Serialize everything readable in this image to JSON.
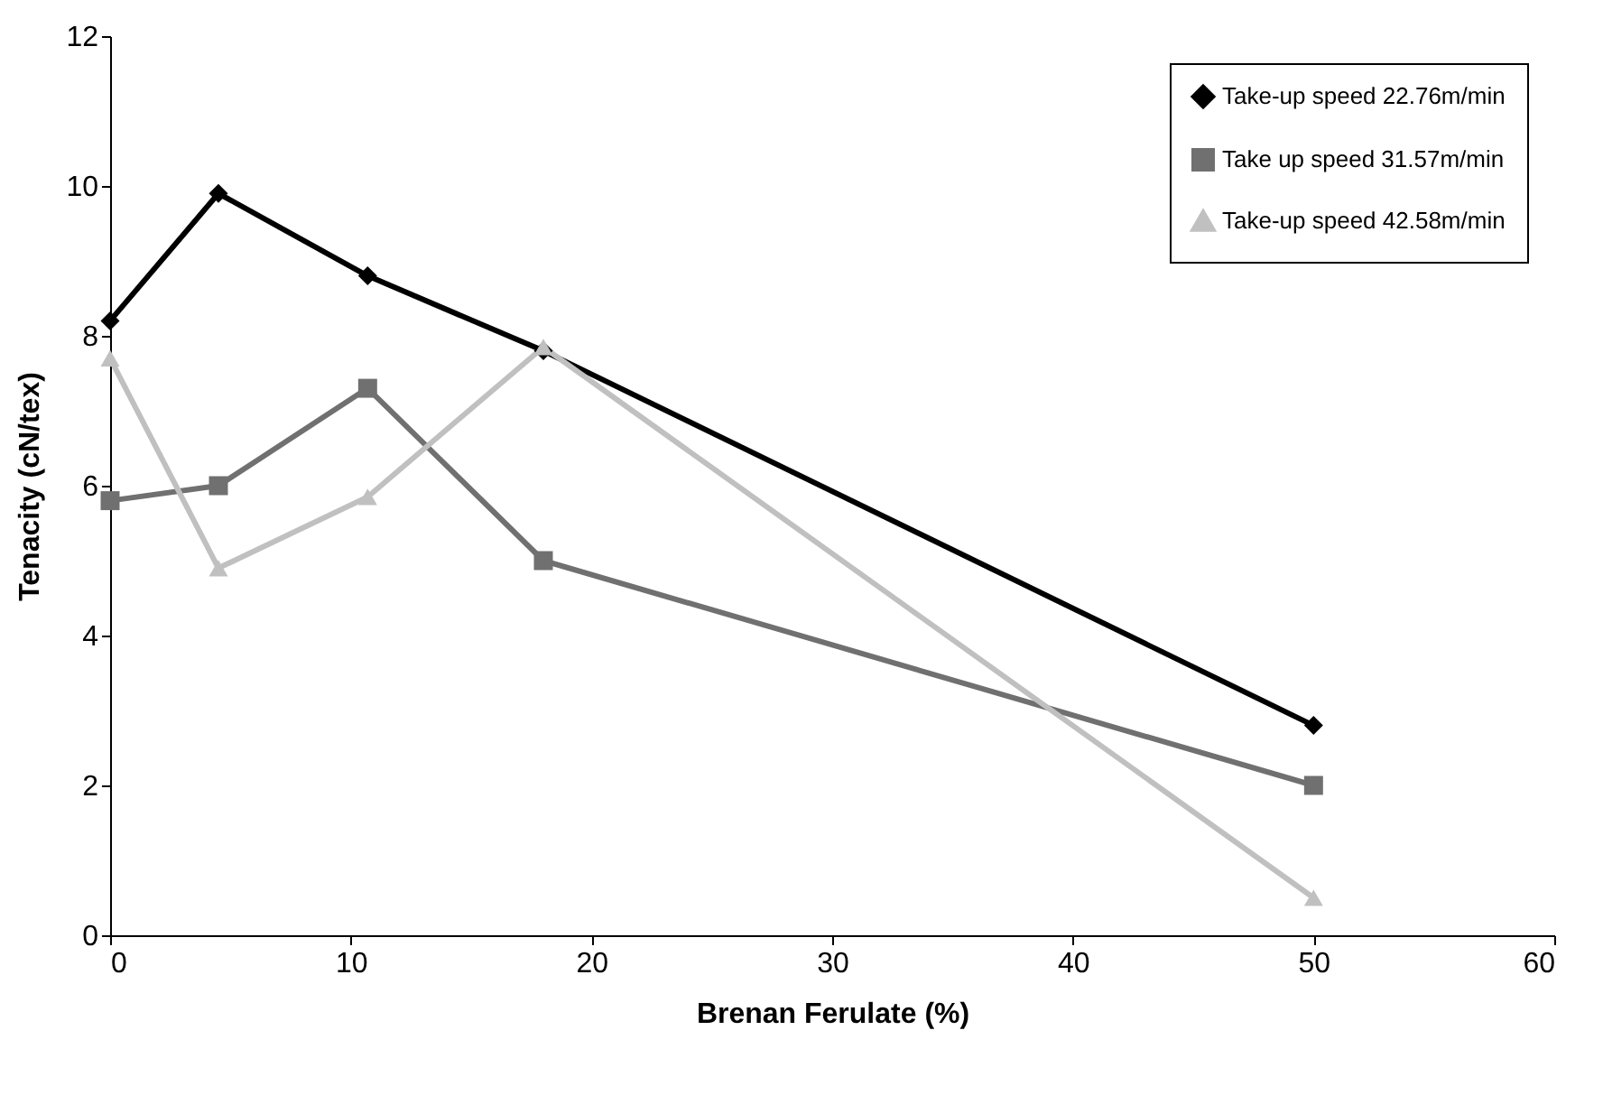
{
  "chart_data": {
    "type": "line",
    "xlabel": "Brenan Ferulate (%)",
    "ylabel": "Tenacity (cN/tex)",
    "x": [
      0,
      4.5,
      10.7,
      18,
      50
    ],
    "series": [
      {
        "name": "Take-up speed 22.76m/min",
        "color": "#000000",
        "marker": "diamond",
        "values": [
          8.2,
          9.9,
          8.8,
          7.8,
          2.8
        ]
      },
      {
        "name": "Take up speed 31.57m/min",
        "color": "#707070",
        "marker": "square",
        "values": [
          5.8,
          6.0,
          7.3,
          5.0,
          2.0
        ]
      },
      {
        "name": "Take-up speed 42.58m/min",
        "color": "#c0c0c0",
        "marker": "triangle",
        "values": [
          7.7,
          4.9,
          5.85,
          7.85,
          0.5
        ]
      }
    ],
    "xlim": [
      0,
      60
    ],
    "xticks": [
      0,
      10,
      20,
      30,
      40,
      50,
      60
    ],
    "ylim": [
      0,
      12
    ],
    "yticks": [
      0,
      2,
      4,
      6,
      8,
      10,
      12
    ],
    "grid": false,
    "legend": "top right",
    "line_style": "solid"
  }
}
